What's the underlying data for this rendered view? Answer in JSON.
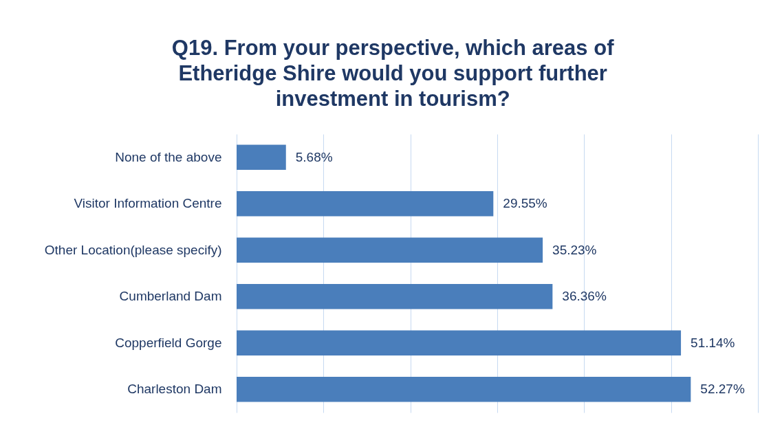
{
  "chart_data": {
    "type": "bar",
    "orientation": "horizontal",
    "title": "Q19. From your perspective, which areas of Etheridge Shire would you support further investment in tourism?",
    "categories": [
      "None of the above",
      "Visitor Information Centre",
      "Other Location(please specify)",
      "Cumberland Dam",
      "Copperfield Gorge",
      "Charleston Dam"
    ],
    "values": [
      5.68,
      29.55,
      35.23,
      36.36,
      51.14,
      52.27
    ],
    "value_labels": [
      "5.68%",
      "29.55%",
      "35.23%",
      "36.36%",
      "51.14%",
      "52.27%"
    ],
    "color": "#4a7ebb",
    "xlim": [
      0,
      60
    ],
    "xticks": [
      0,
      10,
      20,
      30,
      40,
      50,
      60
    ],
    "grid": "x",
    "tick_labels": "y"
  }
}
